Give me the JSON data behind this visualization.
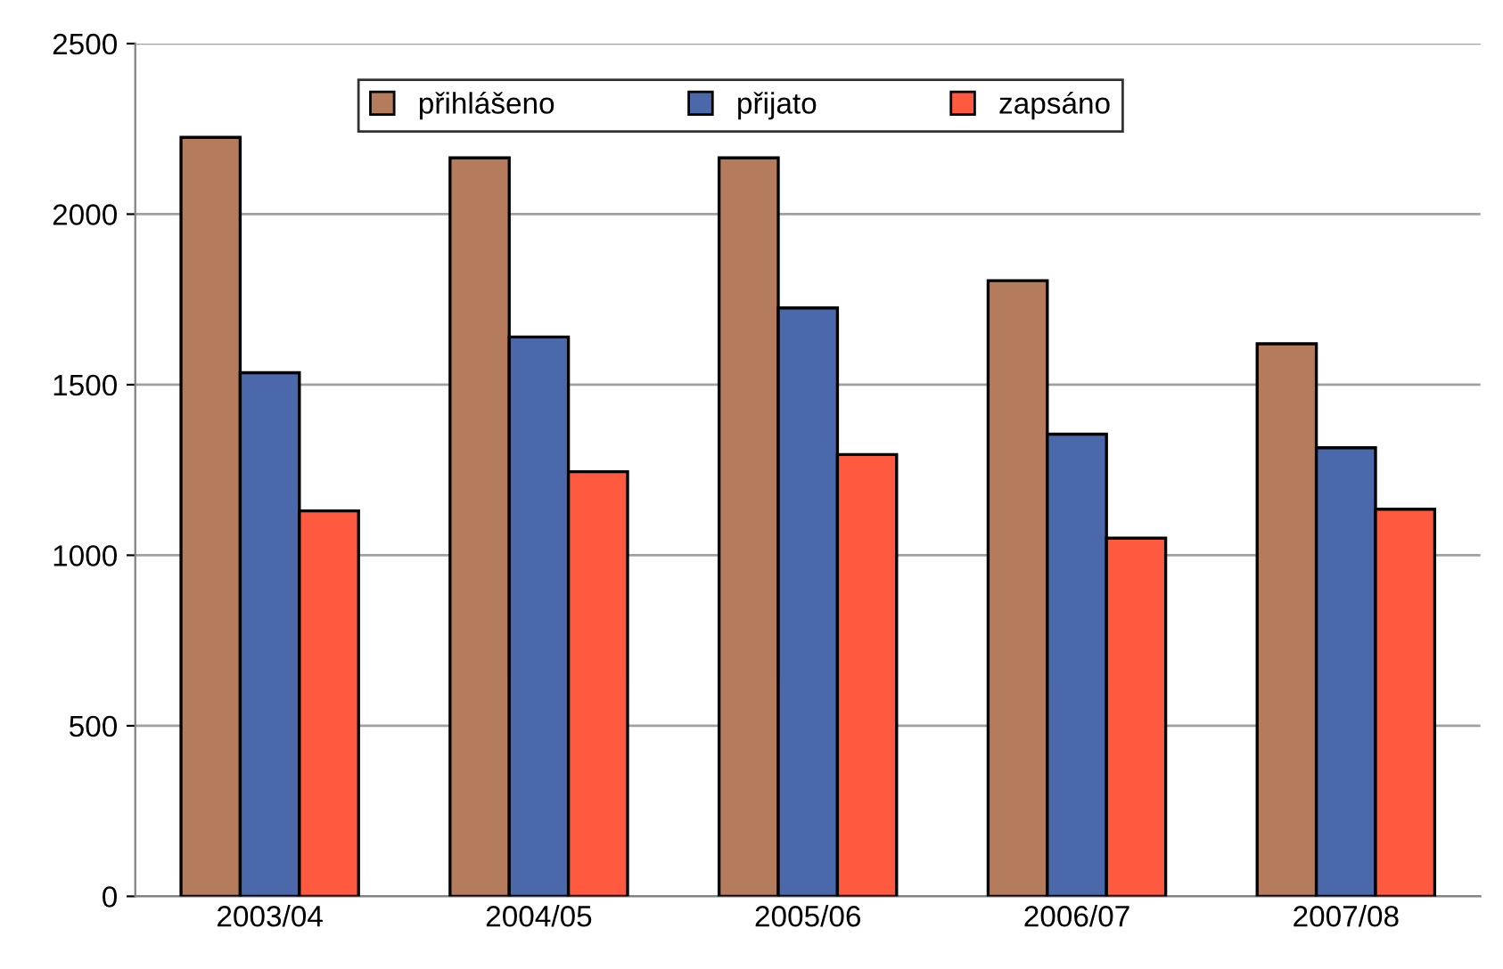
{
  "chart_data": {
    "type": "bar",
    "categories": [
      "2003/04",
      "2004/05",
      "2005/06",
      "2006/07",
      "2007/08"
    ],
    "series": [
      {
        "name": "přihlášeno",
        "color": "#b47c5c",
        "values": [
          2225,
          2165,
          2165,
          1805,
          1620
        ]
      },
      {
        "name": "přijato",
        "color": "#4a68aa",
        "values": [
          1535,
          1640,
          1725,
          1355,
          1315
        ]
      },
      {
        "name": "zapsáno",
        "color": "#ff5a40",
        "values": [
          1130,
          1245,
          1295,
          1050,
          1135
        ]
      }
    ],
    "ylim": [
      0,
      2500
    ],
    "yticks": [
      0,
      500,
      1000,
      1500,
      2000,
      2500
    ],
    "grid": "y",
    "legend": "top"
  }
}
